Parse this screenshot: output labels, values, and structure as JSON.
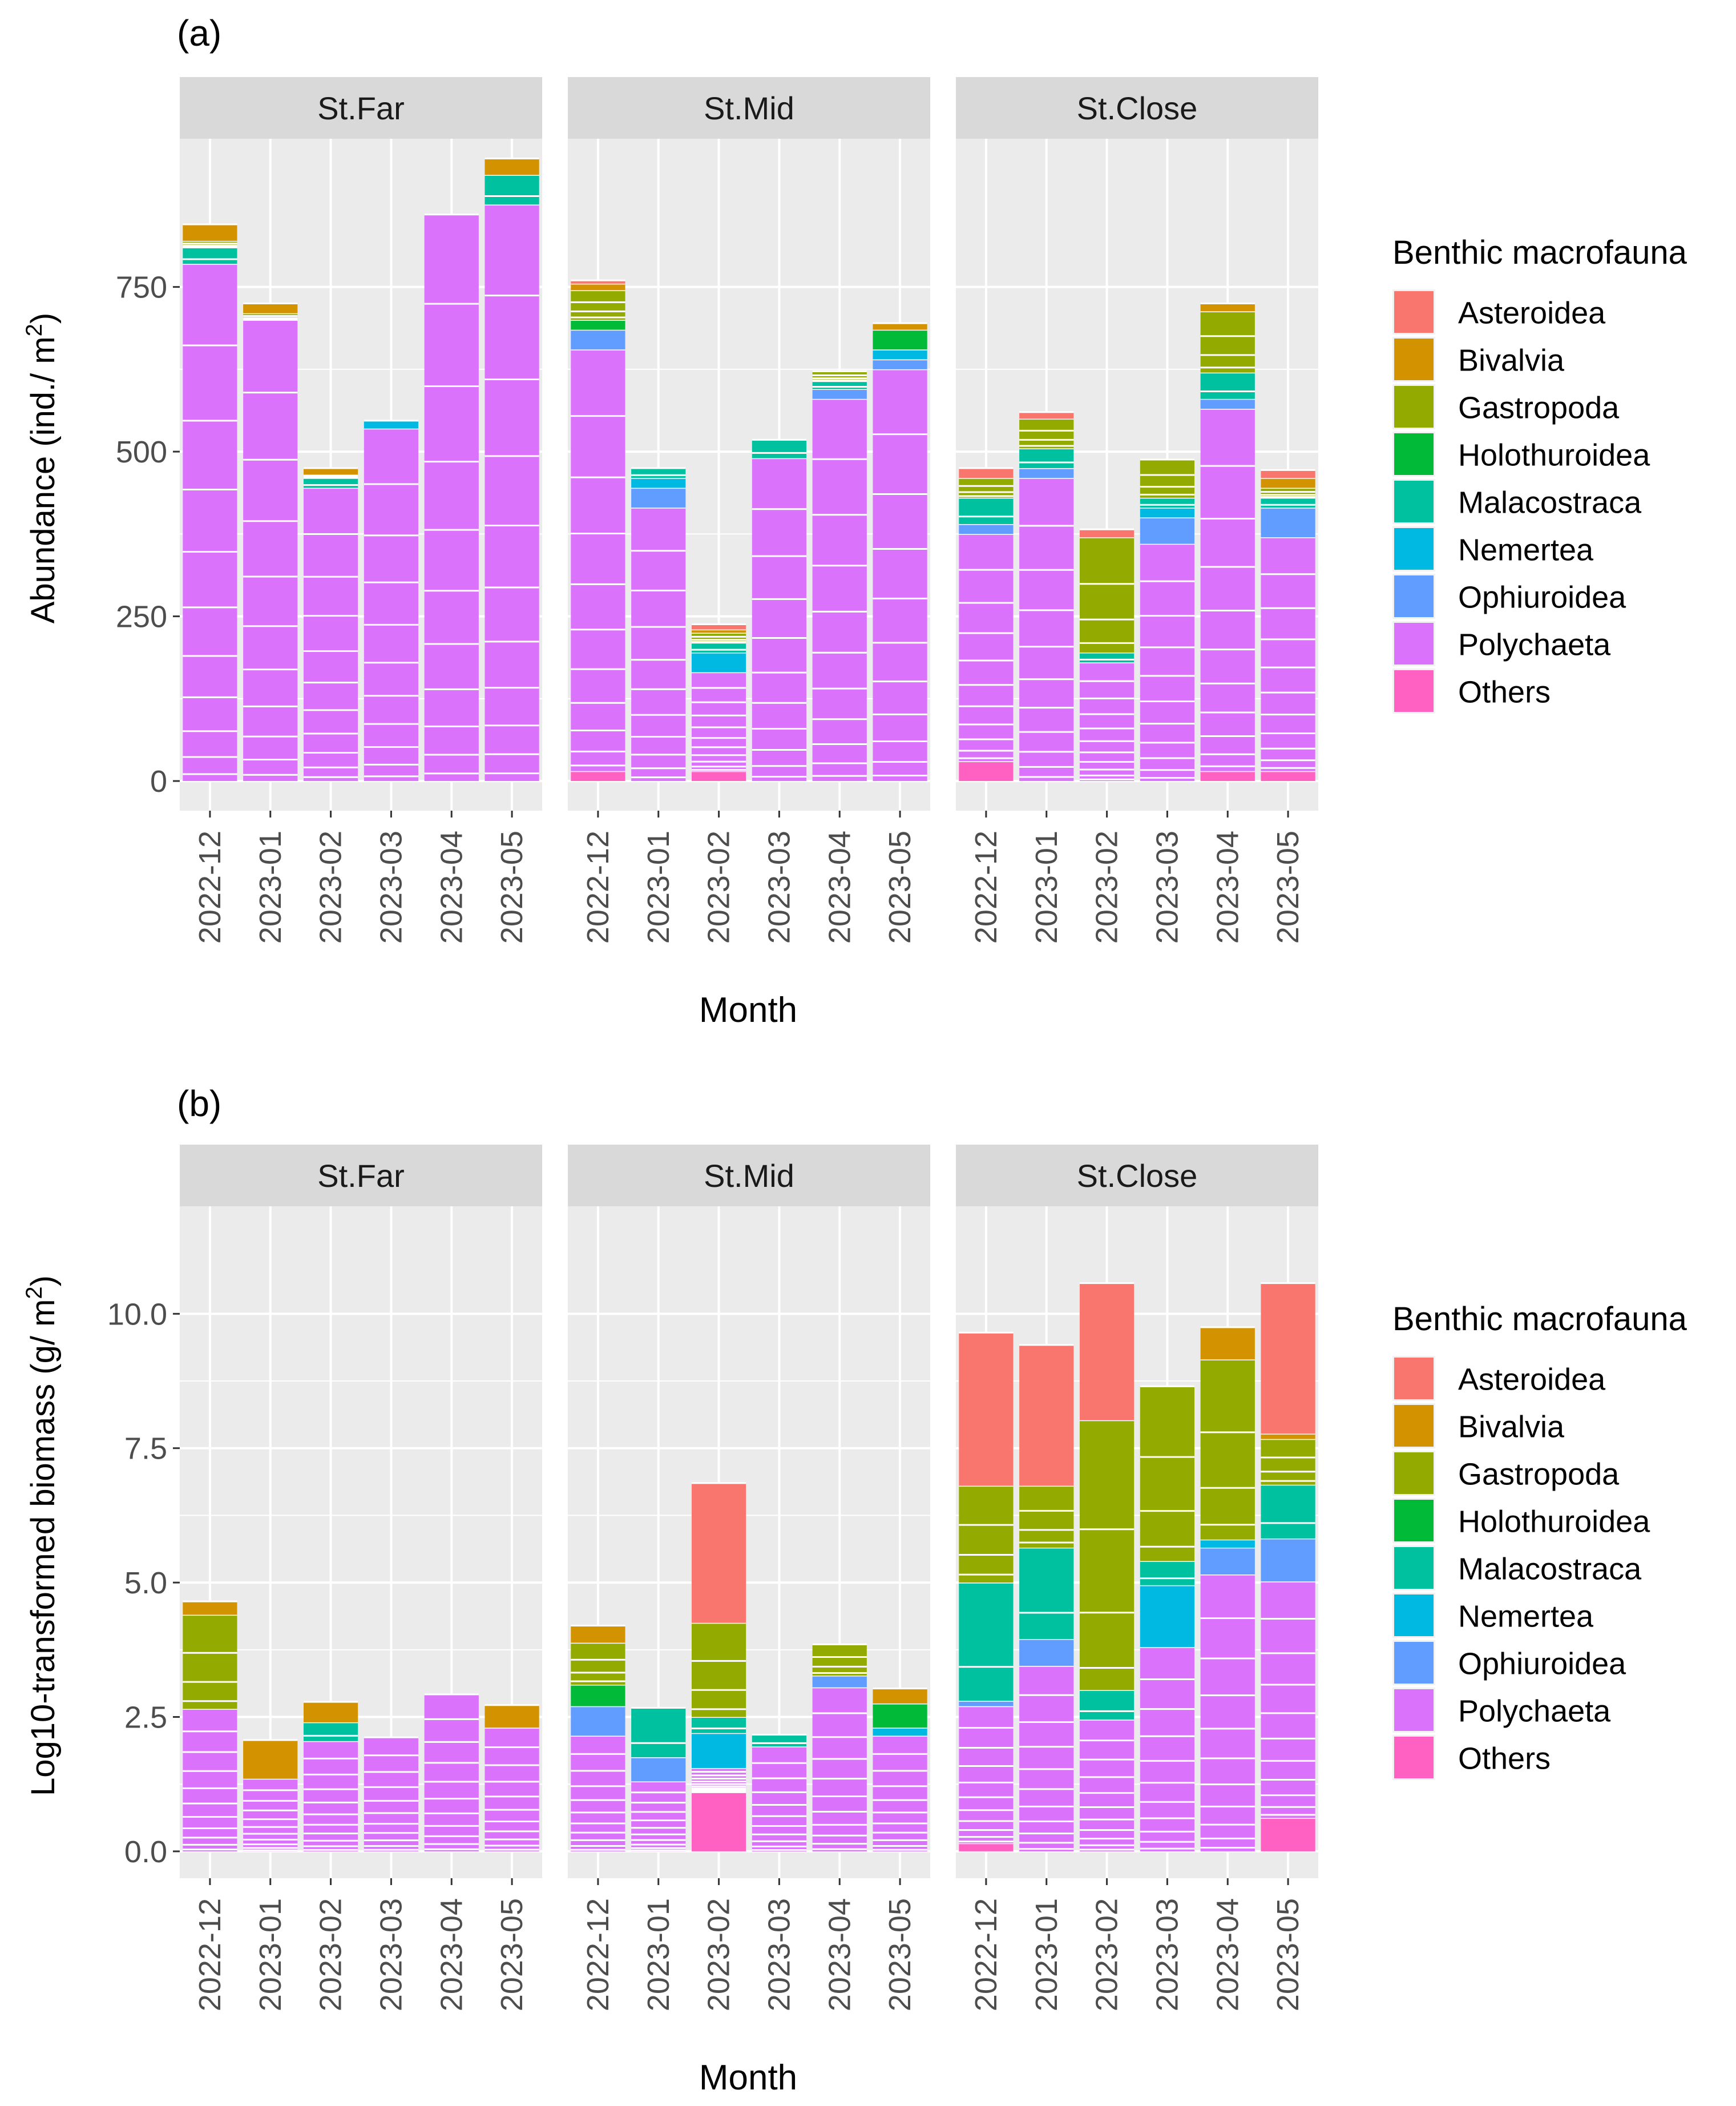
{
  "legend_title": "Benthic macrofauna",
  "taxa": [
    "Asteroidea",
    "Bivalvia",
    "Gastropoda",
    "Holothuroidea",
    "Malacostraca",
    "Nemertea",
    "Ophiuroidea",
    "Polychaeta",
    "Others"
  ],
  "taxa_colors": {
    "Asteroidea": "#F8766D",
    "Bivalvia": "#D39200",
    "Gastropoda": "#93AA00",
    "Holothuroidea": "#00BA38",
    "Malacostraca": "#00C19F",
    "Nemertea": "#00B9E3",
    "Ophiuroidea": "#619CFF",
    "Polychaeta": "#DB72FB",
    "Others": "#FF61C3"
  },
  "chart_data": [
    {
      "panel_label": "(a)",
      "type": "bar",
      "stacked": true,
      "ylabel_main": "Abundance (ind./ m",
      "ylabel_sup": "2",
      "ylabel_end": ")",
      "xlabel": "Month",
      "ylim": [
        -45,
        975
      ],
      "yticks": [
        0,
        250,
        500,
        750
      ],
      "ytick_labels": [
        "0",
        "250",
        "500",
        "750"
      ],
      "categories": [
        "2022-12",
        "2023-01",
        "2023-02",
        "2023-03",
        "2023-04",
        "2023-05"
      ],
      "facets": [
        {
          "name": "St.Far",
          "bars": [
            {
              "Polychaeta": 785,
              "Malacostraca": 25,
              "Gastropoda": 10,
              "Bivalvia": 25
            },
            {
              "Polychaeta": 700,
              "Gastropoda": 10,
              "Bivalvia": 15
            },
            {
              "Polychaeta": 445,
              "Malacostraca": 15,
              "Gastropoda": 5,
              "Bivalvia": 10
            },
            {
              "Polychaeta": 535,
              "Nemertea": 12
            },
            {
              "Polychaeta": 860
            },
            {
              "Polychaeta": 875,
              "Malacostraca": 45,
              "Bivalvia": 25
            }
          ]
        },
        {
          "name": "St.Mid",
          "bars": [
            {
              "Others": 15,
              "Polychaeta": 640,
              "Ophiuroidea": 30,
              "Holothuroidea": 15,
              "Gastropoda": 45,
              "Bivalvia": 10,
              "Asteroidea": 5
            },
            {
              "Polychaeta": 415,
              "Ophiuroidea": 30,
              "Nemertea": 15,
              "Malacostraca": 15
            },
            {
              "Others": 15,
              "Polychaeta": 150,
              "Nemertea": 30,
              "Malacostraca": 15,
              "Gastropoda": 15,
              "Bivalvia": 5,
              "Asteroidea": 8
            },
            {
              "Polychaeta": 490,
              "Malacostraca": 28
            },
            {
              "Polychaeta": 580,
              "Ophiuroidea": 15,
              "Malacostraca": 12,
              "Gastropoda": 15
            },
            {
              "Polychaeta": 625,
              "Ophiuroidea": 15,
              "Nemertea": 15,
              "Holothuroidea": 30,
              "Bivalvia": 10
            }
          ]
        },
        {
          "name": "St.Close",
          "bars": [
            {
              "Others": 30,
              "Polychaeta": 345,
              "Ophiuroidea": 15,
              "Malacostraca": 40,
              "Gastropoda": 30,
              "Asteroidea": 15
            },
            {
              "Polychaeta": 460,
              "Ophiuroidea": 15,
              "Malacostraca": 30,
              "Gastropoda": 45,
              "Asteroidea": 10
            },
            {
              "Polychaeta": 180,
              "Malacostraca": 15,
              "Gastropoda": 175,
              "Asteroidea": 12
            },
            {
              "Polychaeta": 360,
              "Ophiuroidea": 40,
              "Nemertea": 15,
              "Malacostraca": 15,
              "Gastropoda": 58
            },
            {
              "Others": 15,
              "Polychaeta": 550,
              "Ophiuroidea": 15,
              "Malacostraca": 40,
              "Gastropoda": 93,
              "Bivalvia": 12
            },
            {
              "Others": 15,
              "Polychaeta": 355,
              "Ophiuroidea": 45,
              "Malacostraca": 15,
              "Gastropoda": 15,
              "Bivalvia": 15,
              "Asteroidea": 12
            }
          ]
        }
      ]
    },
    {
      "panel_label": "(b)",
      "type": "bar",
      "stacked": true,
      "ylabel_main": "Log10-transformed biomass (g/ m",
      "ylabel_sup": "2",
      "ylabel_end": ")",
      "xlabel": "Month",
      "ylim": [
        -0.5,
        12.0
      ],
      "yticks": [
        0,
        2.5,
        5,
        7.5,
        10
      ],
      "ytick_labels": [
        "0.0",
        "2.5",
        "5.0",
        "7.5",
        "10.0"
      ],
      "categories": [
        "2022-12",
        "2023-01",
        "2023-02",
        "2023-03",
        "2023-04",
        "2023-05"
      ],
      "facets": [
        {
          "name": "St.Far",
          "bars": [
            {
              "Polychaeta": 2.65,
              "Gastropoda": 1.75,
              "Bivalvia": 0.25
            },
            {
              "Polychaeta": 1.35,
              "Bivalvia": 0.72
            },
            {
              "Polychaeta": 2.05,
              "Malacostraca": 0.35,
              "Bivalvia": 0.38
            },
            {
              "Polychaeta": 2.12
            },
            {
              "Polychaeta": 2.92
            },
            {
              "Polychaeta": 2.3,
              "Bivalvia": 0.42
            }
          ]
        },
        {
          "name": "St.Mid",
          "bars": [
            {
              "Polychaeta": 2.15,
              "Ophiuroidea": 0.55,
              "Holothuroidea": 0.4,
              "Gastropoda": 0.78,
              "Bivalvia": 0.32
            },
            {
              "Polychaeta": 1.3,
              "Ophiuroidea": 0.45,
              "Malacostraca": 0.92
            },
            {
              "Others": 1.1,
              "Polychaeta": 0.45,
              "Nemertea": 0.65,
              "Malacostraca": 0.3,
              "Gastropoda": 1.75,
              "Asteroidea": 2.6
            },
            {
              "Polychaeta": 1.95,
              "Malacostraca": 0.22
            },
            {
              "Polychaeta": 3.05,
              "Ophiuroidea": 0.22,
              "Gastropoda": 0.58
            },
            {
              "Polychaeta": 2.15,
              "Nemertea": 0.15,
              "Holothuroidea": 0.45,
              "Bivalvia": 0.28
            }
          ]
        },
        {
          "name": "St.Close",
          "bars": [
            {
              "Others": 0.15,
              "Polychaeta": 2.55,
              "Ophiuroidea": 0.1,
              "Malacostraca": 2.2,
              "Gastropoda": 1.8,
              "Asteroidea": 2.85
            },
            {
              "Polychaeta": 3.45,
              "Ophiuroidea": 0.5,
              "Malacostraca": 1.7,
              "Gastropoda": 1.15,
              "Asteroidea": 2.62
            },
            {
              "Polychaeta": 2.45,
              "Malacostraca": 0.55,
              "Gastropoda": 5.02,
              "Asteroidea": 2.55
            },
            {
              "Polychaeta": 3.8,
              "Nemertea": 1.15,
              "Malacostraca": 0.45,
              "Gastropoda": 3.25
            },
            {
              "Polychaeta": 5.15,
              "Ophiuroidea": 0.5,
              "Nemertea": 0.15,
              "Gastropoda": 3.35,
              "Bivalvia": 0.6
            },
            {
              "Others": 0.62,
              "Polychaeta": 4.4,
              "Ophiuroidea": 0.8,
              "Malacostraca": 1.0,
              "Gastropoda": 0.85,
              "Bivalvia": 0.1,
              "Asteroidea": 2.8
            }
          ]
        }
      ]
    }
  ]
}
